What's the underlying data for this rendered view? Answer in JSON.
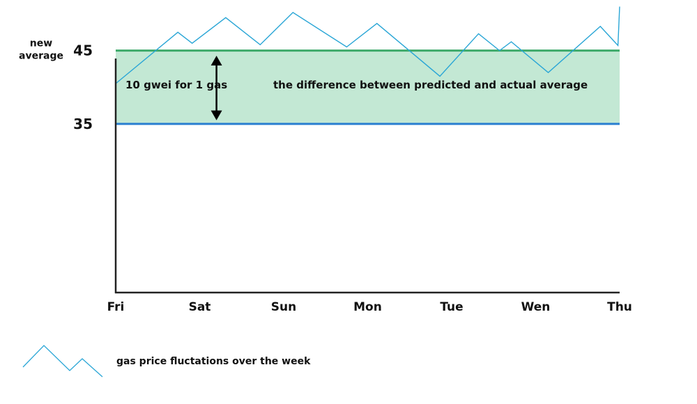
{
  "chart_data": {
    "type": "line",
    "title": "",
    "xlabel": "",
    "ylabel": "",
    "categories": [
      "Fri",
      "Sat",
      "Sun",
      "Mon",
      "Tue",
      "Wen",
      "Thu"
    ],
    "xlim": [
      0,
      6
    ],
    "ylim": [
      12,
      50
    ],
    "y_tick_labels": [
      {
        "value": 45,
        "label": "45"
      },
      {
        "value": 35,
        "label": "35"
      }
    ],
    "reference_lines": [
      {
        "value": 45,
        "label": "new average",
        "color": "#3daa6a"
      },
      {
        "value": 35,
        "color": "#2a7fd0"
      }
    ],
    "band": {
      "from": 35,
      "to": 45,
      "color": "#c3e8d4"
    },
    "series": [
      {
        "name": "gas price fluctations over the week",
        "color": "#2aa6d6",
        "x": [
          0,
          0.74,
          0.91,
          1.31,
          1.72,
          2.11,
          2.75,
          3.11,
          3.86,
          4.32,
          4.57,
          4.71,
          5.15,
          5.77,
          5.98,
          6.0
        ],
        "y": [
          40.5,
          47.5,
          46.0,
          49.5,
          45.8,
          50.2,
          45.5,
          48.7,
          41.5,
          47.3,
          45.0,
          46.2,
          42.0,
          48.3,
          45.7,
          51.0
        ]
      }
    ],
    "annotations": [
      {
        "text": "10 gwei for 1 gas",
        "x": 0.35,
        "y": 40.3
      },
      {
        "text": "the difference between predicted and actual average",
        "x": 3.3,
        "y": 40.3
      }
    ],
    "arrow": {
      "x": 1.2,
      "from": 35.5,
      "to": 44.3
    },
    "legend": {
      "position": "bottom-left"
    }
  }
}
